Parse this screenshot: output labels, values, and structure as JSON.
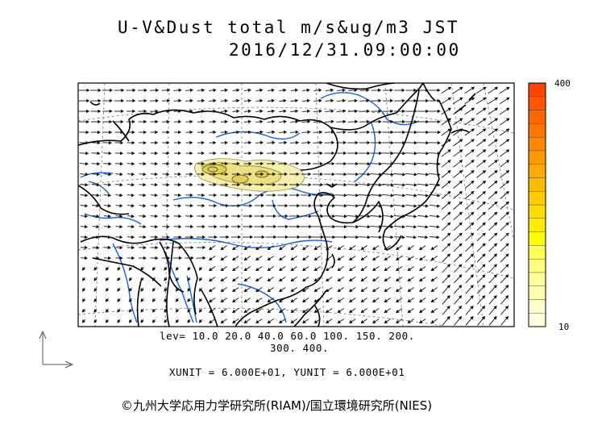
{
  "title": {
    "line1": "U-V&Dust total m/s&ug/m3 JST",
    "line2": "2016/12/31.09:00:00"
  },
  "legend": {
    "lev_line1": "lev= 10.0 20.0 40.0 60.0 100. 150. 200.",
    "lev_line2": "300. 400.",
    "levels": [
      10,
      20,
      40,
      60,
      100,
      150,
      200,
      300,
      400
    ]
  },
  "units_line": "XUNIT = 6.000E+01, YUNIT = 6.000E+01",
  "credit": "©九州大学応用力学研究所(RIAM)/国立環境研究所(NIES)",
  "colorbar": {
    "max_label": "400",
    "min_label": "10",
    "colors": [
      "#ffffe0",
      "#ffffcc",
      "#ffffb0",
      "#ffff99",
      "#ffff80",
      "#ffff55",
      "#ffff00",
      "#ffee00",
      "#ffdd00",
      "#ffcc00",
      "#ffbb00",
      "#ffaa00",
      "#ff9900",
      "#ff8800",
      "#ff7700",
      "#ff6600",
      "#ff5500",
      "#ff4400"
    ]
  },
  "colors": {
    "coast": "#000000",
    "rivers": "#1560e0",
    "dust_low": "#f6f0b0",
    "dust_mid": "#eee080",
    "dust_high": "#e4cf55"
  }
}
